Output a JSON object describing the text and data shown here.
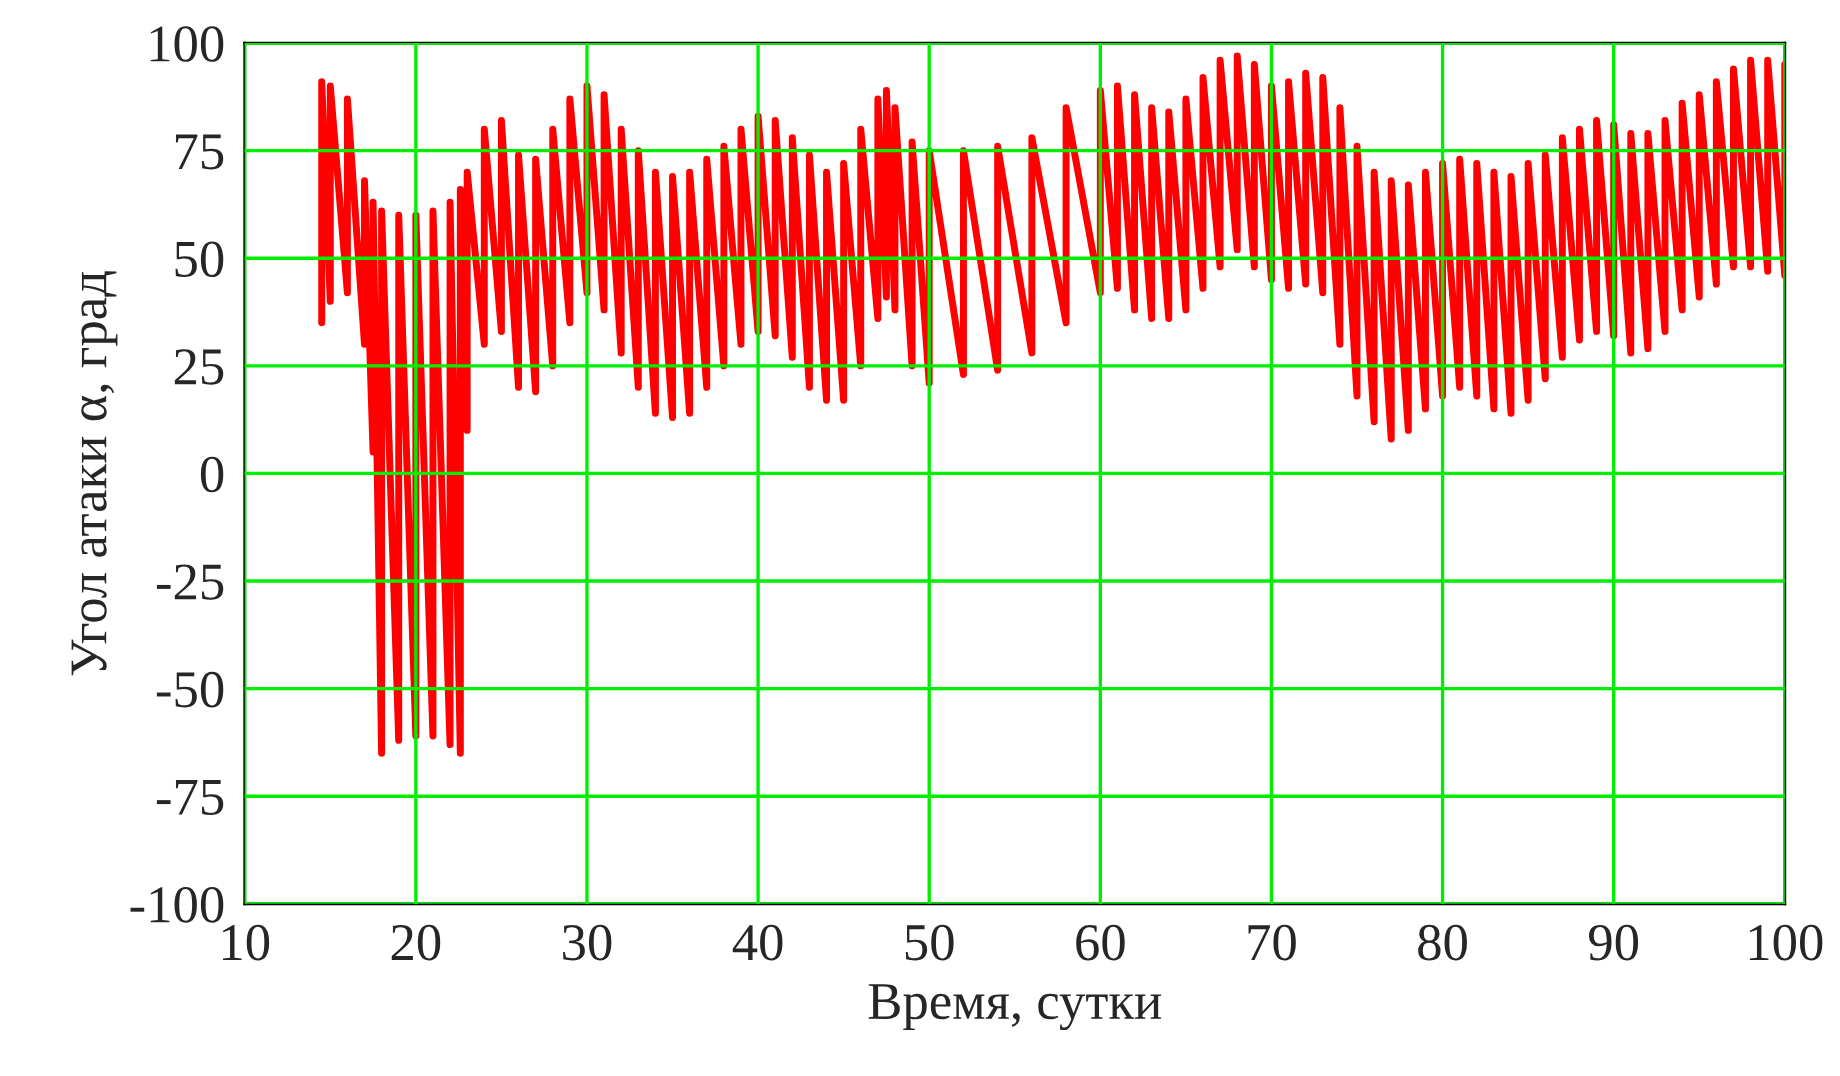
{
  "chart_data": {
    "type": "line",
    "xlabel": "Время, сутки",
    "ylabel": "Угол атаки α, град",
    "x": [
      14.5,
      14.5,
      15,
      15,
      16,
      16,
      17,
      17,
      17.5,
      17.5,
      18,
      18,
      19,
      19,
      20,
      20,
      21,
      21,
      22,
      22,
      22.6,
      22.6,
      23,
      23,
      24,
      24,
      25,
      25,
      26,
      26,
      27,
      27,
      28,
      28,
      29,
      29,
      30,
      30,
      31,
      31,
      32,
      32,
      33,
      33,
      34,
      34,
      35,
      35,
      36,
      36,
      37,
      37,
      38,
      38,
      39,
      39,
      40,
      40,
      41,
      41,
      42,
      42,
      43,
      43,
      44,
      44,
      45,
      45,
      46,
      46,
      47,
      47,
      47.5,
      47.5,
      48,
      48,
      49,
      49,
      50,
      50,
      52,
      52,
      54,
      54,
      56,
      56,
      58,
      58,
      60,
      60,
      61,
      61,
      62,
      62,
      63,
      63,
      64,
      64,
      65,
      65,
      66,
      66,
      67,
      67,
      68,
      68,
      69,
      69,
      70,
      70,
      71,
      71,
      72,
      72,
      73,
      73,
      74,
      74,
      75,
      75,
      76,
      76,
      77,
      77,
      78,
      78,
      79,
      79,
      80,
      80,
      81,
      81,
      82,
      82,
      83,
      83,
      84,
      84,
      85,
      85,
      86,
      86,
      87,
      87,
      88,
      88,
      89,
      89,
      90,
      90,
      91,
      91,
      92,
      92,
      93,
      93,
      94,
      94,
      95,
      95,
      96,
      96,
      97,
      97,
      98,
      98,
      99,
      99,
      100,
      100
    ],
    "series": [
      {
        "color": "#ff0000",
        "values": [
          35,
          91,
          40,
          90,
          42,
          87,
          30,
          68,
          5,
          63,
          -65,
          61,
          -62,
          60,
          -61,
          60,
          -61,
          61,
          -63,
          63,
          -65,
          66,
          10,
          70,
          30,
          80,
          33,
          82,
          20,
          74,
          19,
          73,
          25,
          80,
          35,
          87,
          42,
          90,
          38,
          88,
          28,
          80,
          20,
          75,
          14,
          70,
          13,
          69,
          14,
          70,
          20,
          73,
          25,
          76,
          30,
          80,
          33,
          83,
          32,
          82,
          27,
          78,
          20,
          74,
          17,
          70,
          17,
          72,
          25,
          80,
          36,
          87,
          41,
          89,
          38,
          85,
          25,
          77,
          21,
          75,
          23,
          75,
          24,
          76,
          28,
          78,
          35,
          85,
          42,
          89,
          43,
          90,
          38,
          88,
          36,
          85,
          36,
          84,
          38,
          87,
          43,
          92,
          48,
          96,
          52,
          97,
          48,
          95,
          45,
          90,
          43,
          91,
          44,
          93,
          42,
          92,
          30,
          85,
          18,
          76,
          12,
          70,
          8,
          68,
          10,
          67,
          15,
          70,
          18,
          72,
          20,
          73,
          18,
          72,
          15,
          70,
          14,
          69,
          17,
          72,
          22,
          74,
          27,
          78,
          31,
          80,
          33,
          82,
          32,
          81,
          28,
          79,
          29,
          79,
          33,
          82,
          38,
          86,
          41,
          88,
          44,
          91,
          48,
          94,
          48,
          96,
          47,
          96,
          46,
          95
        ]
      }
    ],
    "xlim": [
      10,
      100
    ],
    "xticks": [
      10,
      20,
      30,
      40,
      50,
      60,
      70,
      80,
      90,
      100
    ],
    "ylim": [
      -100,
      100
    ],
    "yticks": [
      -100,
      -75,
      -50,
      -25,
      0,
      25,
      50,
      75,
      100
    ],
    "grid": true
  }
}
